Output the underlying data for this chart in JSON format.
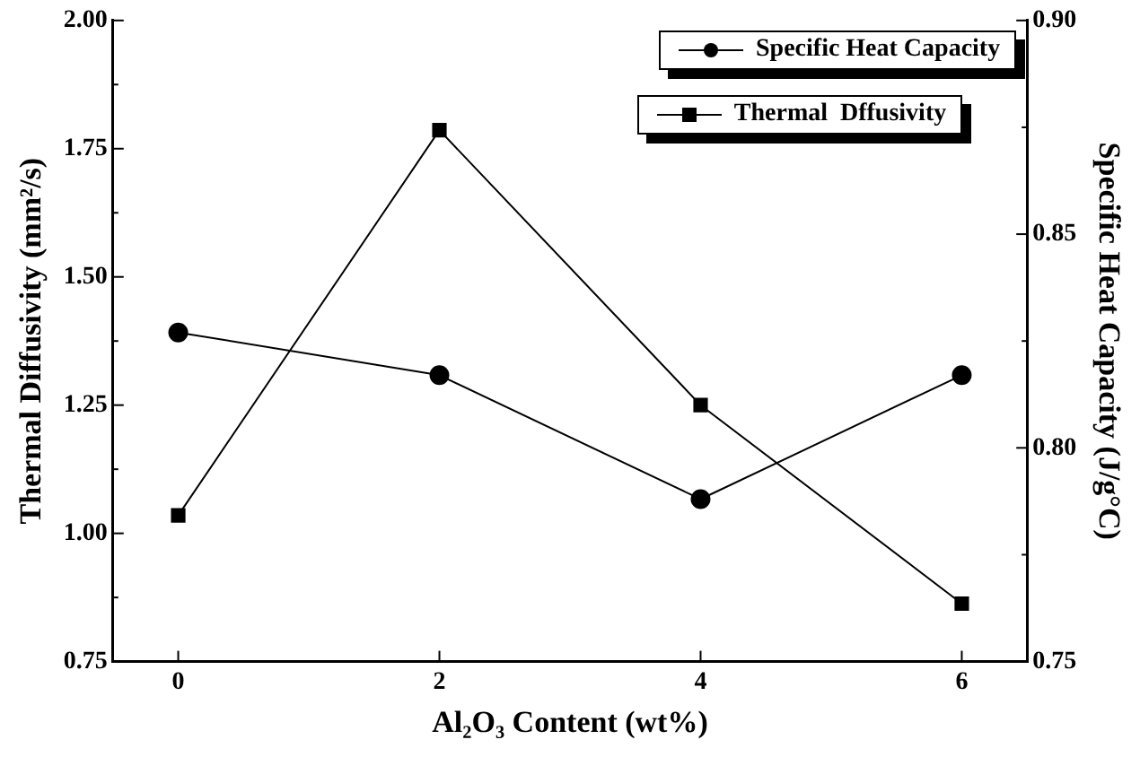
{
  "chart_data": {
    "type": "line",
    "xlabel": "Al₂O₃ Content (wt%)",
    "ylabel": "Thermal Diffusivity (mm²/s)",
    "y2label": "Specific Heat Capacity (J/g°C)",
    "x": [
      0,
      2,
      4,
      6
    ],
    "xlim": [
      -0.5,
      6.5
    ],
    "xticks": [
      0,
      2,
      4,
      6
    ],
    "ylim": [
      0.75,
      2.0
    ],
    "yticks": [
      0.75,
      {
        "value": 0.875,
        "label": null
      },
      {
        "value": 1,
        "label": "1.00"
      },
      {
        "value": 1.125,
        "label": null
      },
      1.25,
      {
        "value": 1.375,
        "label": null
      },
      {
        "value": 1.5,
        "label": "1.50"
      },
      {
        "value": 1.625,
        "label": null
      },
      1.75,
      {
        "value": 1.875,
        "label": null
      },
      {
        "value": 2,
        "label": "2.00"
      }
    ],
    "y2lim": [
      0.75,
      0.9
    ],
    "y2ticks": [
      0.75,
      {
        "value": 0.775,
        "label": null
      },
      {
        "value": 0.8,
        "label": "0.80"
      },
      {
        "value": 0.825,
        "label": null
      },
      0.85,
      {
        "value": 0.875,
        "label": null
      },
      {
        "value": 0.9,
        "label": "0.90"
      }
    ],
    "series": [
      {
        "name": "Specific Heat Capacity",
        "color": "#000000",
        "axis": "y2",
        "marker": "circle",
        "values": [
          0.827,
          0.817,
          0.788,
          0.817
        ]
      },
      {
        "name": "Thermal  Dffusivity",
        "color": "#000000",
        "marker": "square",
        "values": [
          1.035,
          1.786,
          1.25,
          0.863
        ]
      }
    ],
    "legend": "top right",
    "grid": false,
    "line_style": "solid"
  }
}
